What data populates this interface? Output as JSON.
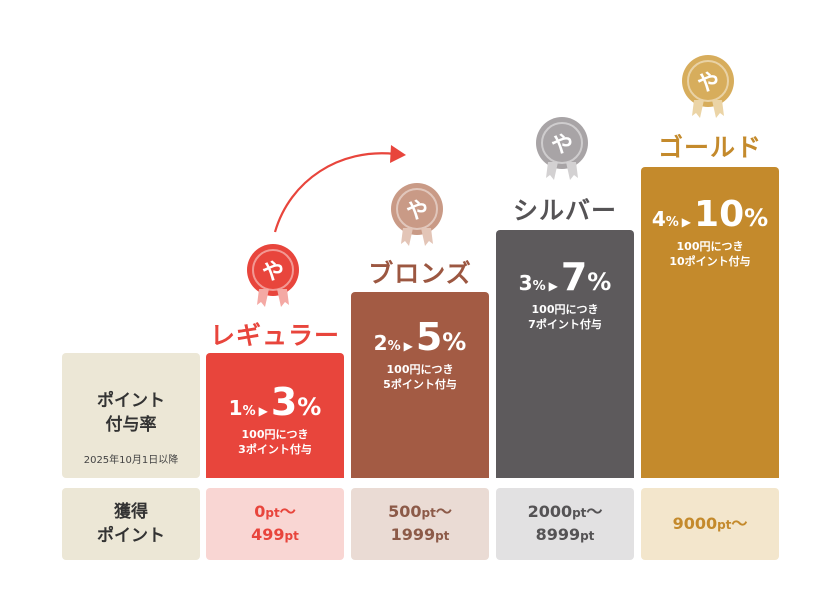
{
  "labels": {
    "rate_line1": "ポイント",
    "rate_line2": "付与率",
    "rate_note": "2025年10月1日以降",
    "points_line1": "獲得",
    "points_line2": "ポイント"
  },
  "tiers": [
    {
      "name": "レギュラー",
      "from": "1",
      "to": "3",
      "pct": "%",
      "note1": "100円につき",
      "note2": "3ポイント付与",
      "points_from": "0",
      "points_to": "499",
      "unit": "pt",
      "tilde": "〜",
      "medal_glyph": "や",
      "color": "#e8453c",
      "name_color": "#e8453c",
      "pt_bg": "#f9d6d3",
      "pt_color": "#e8453c"
    },
    {
      "name": "ブロンズ",
      "from": "2",
      "to": "5",
      "pct": "%",
      "note1": "100円につき",
      "note2": "5ポイント付与",
      "points_from": "500",
      "points_to": "1999",
      "unit": "pt",
      "tilde": "〜",
      "medal_glyph": "や",
      "color": "#a35b44",
      "name_color": "#9c5741",
      "pt_bg": "#eadbd4",
      "pt_color": "#8c5a48"
    },
    {
      "name": "シルバー",
      "from": "3",
      "to": "7",
      "pct": "%",
      "note1": "100円につき",
      "note2": "7ポイント付与",
      "points_from": "2000",
      "points_to": "8999",
      "unit": "pt",
      "tilde": "〜",
      "medal_glyph": "や",
      "color": "#5d5a5c",
      "name_color": "#555355",
      "pt_bg": "#e2e1e2",
      "pt_color": "#555355"
    },
    {
      "name": "ゴールド",
      "from": "4",
      "to": "10",
      "pct": "%",
      "note1": "100円につき",
      "note2": "10ポイント付与",
      "points_from": "9000",
      "points_to": "",
      "unit": "pt",
      "tilde": "〜",
      "medal_glyph": "や",
      "color": "#c48a2c",
      "name_color": "#c48a2c",
      "pt_bg": "#f3e6cc",
      "pt_color": "#c48a2c"
    }
  ],
  "colors": {
    "label_bg": "#ece7d6",
    "arrow": "#e8453c",
    "medal_regular": "#e8453c",
    "medal_bronze": "#c99a86",
    "medal_silver": "#a8a4a6",
    "medal_gold": "#d7ad5c"
  }
}
